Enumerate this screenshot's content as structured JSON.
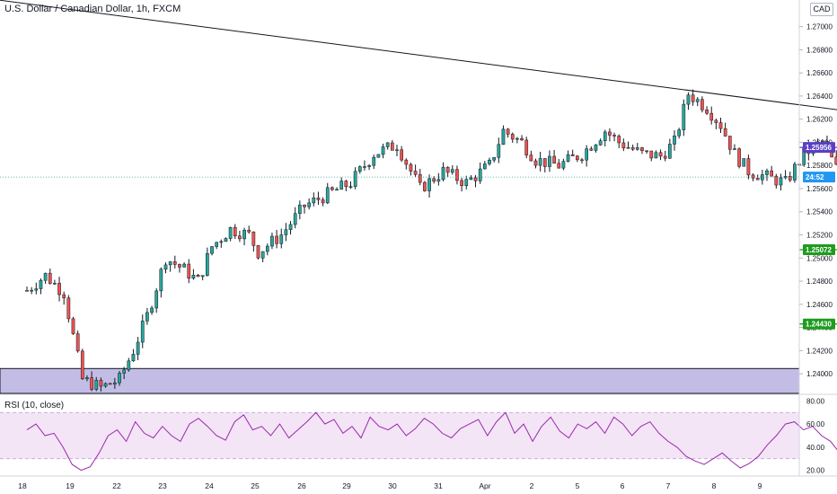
{
  "header": {
    "symbol_title": "U.S. Dollar / Canadian Dollar, 1h, FXCM",
    "currency_badge": "CAD"
  },
  "rsi_panel": {
    "label": "RSI (10, close)",
    "ticks": [
      "80.00",
      "60.00",
      "40.00",
      "20.00"
    ]
  },
  "colors": {
    "up": "#26a69a",
    "down": "#ef5350",
    "wick": "#131722",
    "zone": "#b9b2e0",
    "level_purple": "#5b3fc4",
    "level_green": "#1e9c1e",
    "rsi_line": "#9c27b0",
    "rsi_band": "#f3e5f5",
    "arrow": "#e53935",
    "price_badge": "#2196f3"
  },
  "chart_data": {
    "type": "candlestick",
    "title": "U.S. Dollar / Canadian Dollar, 1h, FXCM",
    "y_ticks": [
      1.27,
      1.268,
      1.266,
      1.264,
      1.262,
      1.26,
      1.258,
      1.256,
      1.254,
      1.252,
      1.25,
      1.248,
      1.246,
      1.244,
      1.242,
      1.24
    ],
    "y_range": [
      1.2383,
      1.2723
    ],
    "x_ticks": [
      "18",
      "19",
      "22",
      "23",
      "24",
      "25",
      "26",
      "29",
      "30",
      "31",
      "Apr",
      "2",
      "5",
      "6",
      "7",
      "8",
      "9"
    ],
    "close_path": [
      [
        0,
        1.2472
      ],
      [
        0.4,
        1.2485
      ],
      [
        0.8,
        1.247
      ],
      [
        1.2,
        1.2395
      ],
      [
        1.6,
        1.2388
      ],
      [
        2.0,
        1.2395
      ],
      [
        2.3,
        1.242
      ],
      [
        2.6,
        1.245
      ],
      [
        3.0,
        1.25
      ],
      [
        3.4,
        1.249
      ],
      [
        3.7,
        1.248
      ],
      [
        4.0,
        1.251
      ],
      [
        4.4,
        1.2525
      ],
      [
        4.8,
        1.252
      ],
      [
        5.0,
        1.2505
      ],
      [
        5.5,
        1.252
      ],
      [
        6.0,
        1.2545
      ],
      [
        6.5,
        1.2555
      ],
      [
        7.0,
        1.2565
      ],
      [
        7.5,
        1.259
      ],
      [
        8.0,
        1.2598
      ],
      [
        8.5,
        1.256
      ],
      [
        9.0,
        1.2575
      ],
      [
        9.5,
        1.2565
      ],
      [
        10.0,
        1.258
      ],
      [
        10.3,
        1.261
      ],
      [
        10.7,
        1.26
      ],
      [
        11.0,
        1.2585
      ],
      [
        11.5,
        1.258
      ],
      [
        12.0,
        1.259
      ],
      [
        12.5,
        1.261
      ],
      [
        12.8,
        1.26
      ],
      [
        13.3,
        1.259
      ],
      [
        13.7,
        1.2588
      ],
      [
        14.0,
        1.26
      ],
      [
        14.3,
        1.2642
      ],
      [
        14.7,
        1.263
      ],
      [
        15.0,
        1.2615
      ],
      [
        15.3,
        1.259
      ],
      [
        15.6,
        1.2575
      ],
      [
        16.0,
        1.257
      ],
      [
        16.4,
        1.2565
      ],
      [
        16.8,
        1.259
      ],
      [
        17.2,
        1.26
      ],
      [
        17.6,
        1.257
      ],
      [
        17.9,
        1.255
      ],
      [
        18.2,
        1.254
      ],
      [
        18.5,
        1.2535
      ],
      [
        18.8,
        1.2545
      ],
      [
        19.1,
        1.2555
      ],
      [
        19.4,
        1.256
      ],
      [
        19.7,
        1.2565
      ],
      [
        20.0,
        1.2575
      ],
      [
        20.2,
        1.2582
      ],
      [
        20.5,
        1.257
      ]
    ],
    "trendline": {
      "from": [
        -1,
        1.2725
      ],
      "to": [
        25,
        1.2589
      ]
    },
    "projection_curve": {
      "start": [
        20.1,
        1.2578
      ],
      "peak": [
        21.6,
        1.261
      ],
      "end": [
        25,
        1.2477
      ]
    },
    "levels": [
      {
        "label": "1.25956",
        "value": 1.25956,
        "color": "level_purple",
        "from_x": 18.0
      },
      {
        "label": "1.25072",
        "value": 1.25072,
        "color": "level_green",
        "from_x": 18.1
      },
      {
        "label": "1.24430",
        "value": 1.2443,
        "color": "level_green",
        "from_x": 18.2
      }
    ],
    "zone": {
      "from": 1.2383,
      "to": 1.24045
    },
    "current_price": {
      "value": 1.257,
      "countdown": "24:52"
    },
    "rsi": {
      "y_range": [
        15,
        85
      ],
      "band": [
        30,
        70
      ],
      "values": [
        55,
        60,
        50,
        52,
        40,
        25,
        20,
        23,
        35,
        50,
        55,
        45,
        62,
        52,
        48,
        58,
        50,
        45,
        60,
        65,
        58,
        50,
        46,
        62,
        68,
        55,
        58,
        50,
        60,
        48,
        55,
        62,
        70,
        60,
        64,
        52,
        58,
        48,
        66,
        58,
        55,
        60,
        50,
        56,
        65,
        60,
        52,
        48,
        56,
        60,
        64,
        50,
        62,
        70,
        52,
        60,
        45,
        58,
        66,
        54,
        48,
        60,
        56,
        62,
        52,
        66,
        60,
        50,
        58,
        62,
        52,
        45,
        40,
        32,
        28,
        25,
        30,
        35,
        28,
        22,
        26,
        32,
        42,
        50,
        60,
        62,
        55,
        58,
        50,
        45,
        35,
        30,
        28,
        30,
        26,
        24,
        30,
        45,
        55,
        60,
        56,
        62,
        58,
        60,
        55,
        62
      ]
    }
  }
}
